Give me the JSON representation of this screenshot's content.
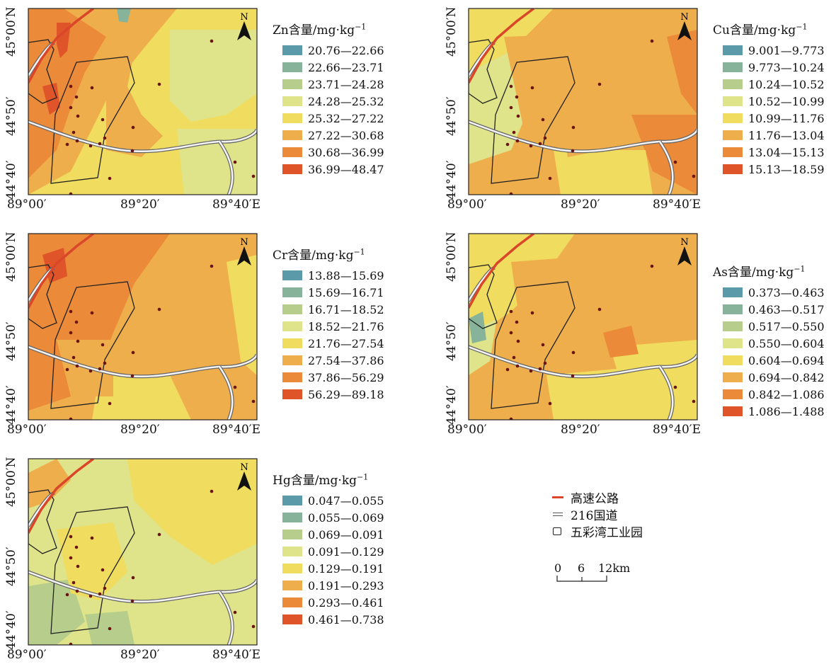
{
  "maps": [
    {
      "id": "zn",
      "legend_title": "Zn含量/mg·kg",
      "legend_unit_exp": "−1",
      "classes": [
        "20.76—22.66",
        "22.66—23.71",
        "23.71—24.28",
        "24.28—25.32",
        "25.32—27.22",
        "27.22—30.68",
        "30.68—36.99",
        "36.99—48.47"
      ],
      "background_class": 4
    },
    {
      "id": "cu",
      "legend_title": "Cu含量/mg·kg",
      "legend_unit_exp": "−1",
      "classes": [
        "9.001—9.773",
        "9.773—10.24",
        "10.24—10.52",
        "10.52—10.99",
        "10.99—11.76",
        "11.76—13.04",
        "13.04—15.13",
        "15.13—18.59"
      ],
      "background_class": 5
    },
    {
      "id": "cr",
      "legend_title": "Cr含量/mg·kg",
      "legend_unit_exp": "−1",
      "classes": [
        "13.88—15.69",
        "15.69—16.71",
        "16.71—18.52",
        "18.52—21.76",
        "21.76—27.54",
        "27.54—37.86",
        "37.86—56.29",
        "56.29—89.18"
      ],
      "background_class": 5
    },
    {
      "id": "as",
      "legend_title": "As含量/mg·kg",
      "legend_unit_exp": "−1",
      "classes": [
        "0.373—0.463",
        "0.463—0.517",
        "0.517—0.550",
        "0.550—0.604",
        "0.604—0.694",
        "0.694—0.842",
        "0.842—1.086",
        "1.086—1.488"
      ],
      "background_class": 5
    },
    {
      "id": "hg",
      "legend_title": "Hg含量/mg·kg",
      "legend_unit_exp": "−1",
      "classes": [
        "0.047—0.055",
        "0.055—0.069",
        "0.069—0.091",
        "0.091—0.129",
        "0.129—0.191",
        "0.191—0.293",
        "0.293—0.461",
        "0.461—0.738"
      ],
      "background_class": 4
    }
  ],
  "class_colors": [
    "#5b9aa8",
    "#86b39a",
    "#b7cd8c",
    "#dfe48a",
    "#f0dc5e",
    "#efae4c",
    "#eb8a38",
    "#e0542a"
  ],
  "x_ticks": [
    "89°00′",
    "89°20′",
    "89°40′E"
  ],
  "y_ticks": [
    "45°00′N",
    "44°50′",
    "44°40′"
  ],
  "north_label": "N",
  "key": {
    "highway": "高速公路",
    "national_road": "216国道",
    "industrial_park": "五彩湾工业园",
    "highway_color": "#d9462a"
  },
  "scalebar": {
    "label0": "0",
    "label1": "6",
    "label2": "12km"
  }
}
